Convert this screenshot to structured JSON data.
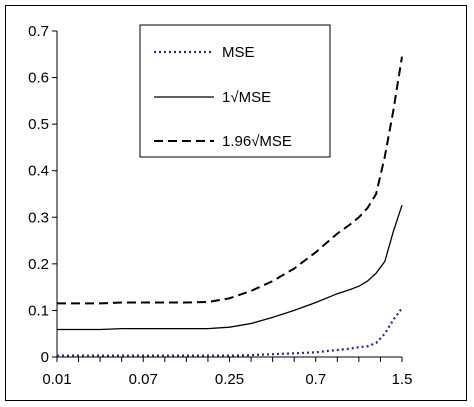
{
  "chart_data": {
    "type": "line",
    "x_tick_labels": [
      "0.01",
      "0.07",
      "0.25",
      "0.7",
      "1.5"
    ],
    "y_tick_labels": [
      "0",
      "0.1",
      "0.2",
      "0.3",
      "0.4",
      "0.5",
      "0.6",
      "0.7"
    ],
    "ylim": [
      0,
      0.7
    ],
    "xlim": [
      0,
      4
    ],
    "x_scale": "categorical-position",
    "grid": false,
    "legend_position": "top-right",
    "x": [
      0,
      0.25,
      0.5,
      0.75,
      1,
      1.25,
      1.5,
      1.75,
      2,
      2.25,
      2.5,
      2.75,
      3,
      3.25,
      3.4,
      3.5,
      3.6,
      3.7,
      3.8,
      3.9,
      4
    ],
    "series": [
      {
        "name": "MSE",
        "style": "dotted",
        "color": "#1f2a8a",
        "values": [
          0.003,
          0.003,
          0.003,
          0.003,
          0.003,
          0.003,
          0.003,
          0.003,
          0.003,
          0.004,
          0.006,
          0.008,
          0.01,
          0.015,
          0.018,
          0.021,
          0.023,
          0.03,
          0.05,
          0.08,
          0.105
        ]
      },
      {
        "name": "1√MSE",
        "style": "solid",
        "color": "#000000",
        "values": [
          0.059,
          0.059,
          0.059,
          0.061,
          0.061,
          0.061,
          0.061,
          0.061,
          0.064,
          0.072,
          0.085,
          0.1,
          0.117,
          0.136,
          0.145,
          0.152,
          0.163,
          0.18,
          0.205,
          0.27,
          0.326
        ]
      },
      {
        "name": "1.96√MSE",
        "style": "dashed",
        "color": "#000000",
        "values": [
          0.115,
          0.115,
          0.115,
          0.117,
          0.117,
          0.117,
          0.117,
          0.118,
          0.126,
          0.142,
          0.163,
          0.19,
          0.225,
          0.265,
          0.285,
          0.3,
          0.32,
          0.35,
          0.43,
          0.53,
          0.645
        ]
      }
    ]
  }
}
